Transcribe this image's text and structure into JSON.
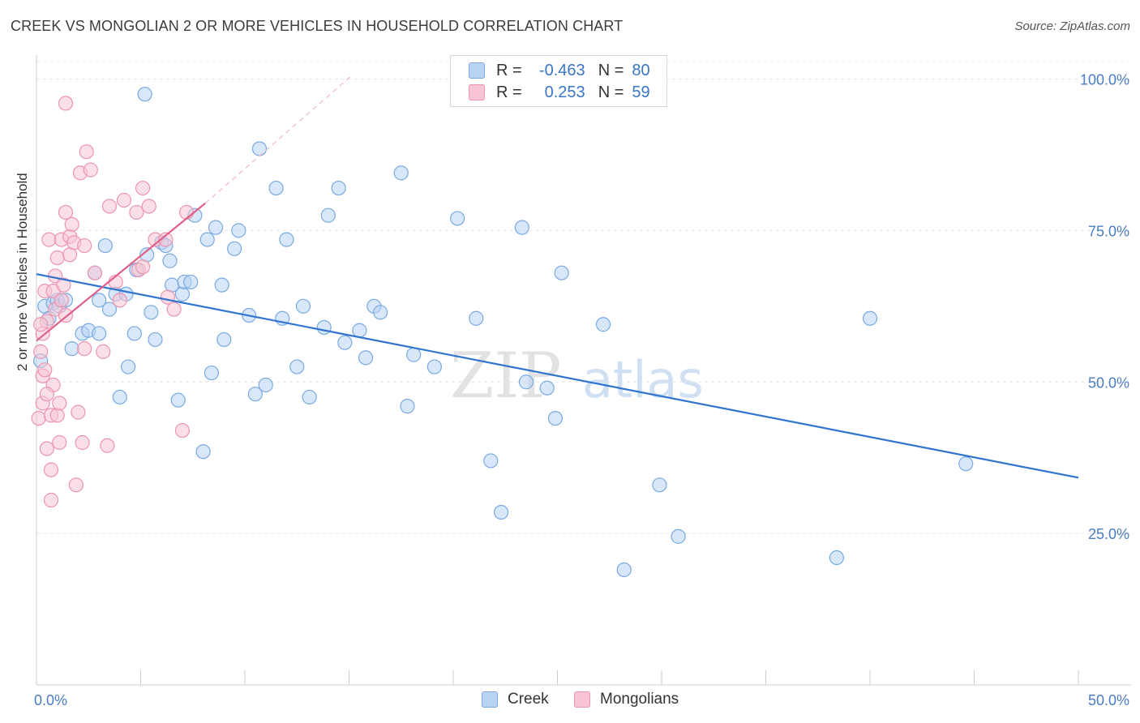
{
  "title": "CREEK VS MONGOLIAN 2 OR MORE VEHICLES IN HOUSEHOLD CORRELATION CHART",
  "source": "Source: ZipAtlas.com",
  "watermark": {
    "zip": "ZIP",
    "atlas": "atlas"
  },
  "colors": {
    "creek_fill": "#b8d3f4",
    "creek_stroke": "#7aaae0",
    "creek_line": "#2f74cf",
    "mong_fill": "#f7c4d4",
    "mong_stroke": "#ec94b0",
    "mong_line": "#e0608a",
    "tick_label": "#4a7cc4"
  },
  "legend": {
    "r_label": "R =",
    "n_label": "N =",
    "creek": {
      "r": "-0.463",
      "n": "80"
    },
    "mongolians": {
      "r": "0.253",
      "n": "59"
    }
  },
  "bottom_legend": {
    "creek": "Creek",
    "mongolians": "Mongolians"
  },
  "chart_data": {
    "type": "scatter",
    "title": "CREEK VS MONGOLIAN 2 OR MORE VEHICLES IN HOUSEHOLD CORRELATION CHART",
    "xlabel": "",
    "ylabel": "2 or more Vehicles in Household",
    "xlim": [
      0,
      50
    ],
    "ylim": [
      0,
      105
    ],
    "x_tick_labels": [
      "0.0%",
      "50.0%"
    ],
    "y_ticks": [
      25,
      50,
      75,
      100
    ],
    "y_tick_labels": [
      "25.0%",
      "50.0%",
      "75.0%",
      "100.0%"
    ],
    "grid": true,
    "series": [
      {
        "name": "Creek",
        "points": [
          [
            0.2,
            53.5
          ],
          [
            0.4,
            62.5
          ],
          [
            0.6,
            60.5
          ],
          [
            0.8,
            63
          ],
          [
            1.0,
            63.5
          ],
          [
            1.1,
            62.5
          ],
          [
            1.4,
            63.5
          ],
          [
            1.7,
            55.5
          ],
          [
            2.2,
            58
          ],
          [
            2.5,
            58.5
          ],
          [
            2.8,
            68
          ],
          [
            3.0,
            63.5
          ],
          [
            3.3,
            72.5
          ],
          [
            3.5,
            62
          ],
          [
            3.8,
            64.5
          ],
          [
            4.0,
            47.5
          ],
          [
            4.3,
            64.5
          ],
          [
            4.4,
            52.5
          ],
          [
            4.7,
            58
          ],
          [
            4.8,
            68.5
          ],
          [
            5.2,
            97.5
          ],
          [
            5.3,
            71
          ],
          [
            5.5,
            61.5
          ],
          [
            5.7,
            57
          ],
          [
            6.0,
            73
          ],
          [
            6.2,
            72.5
          ],
          [
            6.4,
            70
          ],
          [
            6.5,
            66
          ],
          [
            6.8,
            47
          ],
          [
            7.0,
            64.5
          ],
          [
            7.1,
            66.5
          ],
          [
            7.4,
            66.5
          ],
          [
            7.6,
            77.5
          ],
          [
            8.0,
            38.5
          ],
          [
            8.2,
            73.5
          ],
          [
            8.4,
            51.5
          ],
          [
            8.6,
            75.5
          ],
          [
            8.9,
            66
          ],
          [
            9.0,
            57
          ],
          [
            9.5,
            72
          ],
          [
            9.7,
            75
          ],
          [
            10.2,
            61
          ],
          [
            10.5,
            48
          ],
          [
            10.7,
            88.5
          ],
          [
            11.0,
            49.5
          ],
          [
            11.5,
            82
          ],
          [
            11.8,
            60.5
          ],
          [
            12.5,
            52.5
          ],
          [
            12.8,
            62.5
          ],
          [
            13.1,
            47.5
          ],
          [
            13.8,
            59
          ],
          [
            14.0,
            77.5
          ],
          [
            14.5,
            82
          ],
          [
            14.8,
            56.5
          ],
          [
            15.5,
            58.5
          ],
          [
            15.8,
            54
          ],
          [
            16.2,
            62.5
          ],
          [
            16.5,
            61.5
          ],
          [
            17.5,
            84.5
          ],
          [
            17.8,
            46
          ],
          [
            18.1,
            54.5
          ],
          [
            19.1,
            52.5
          ],
          [
            20.2,
            77
          ],
          [
            21.1,
            60.5
          ],
          [
            21.8,
            37
          ],
          [
            22.3,
            28.5
          ],
          [
            23.3,
            75.5
          ],
          [
            23.5,
            50
          ],
          [
            24.5,
            49
          ],
          [
            24.9,
            44
          ],
          [
            25.2,
            68
          ],
          [
            27.2,
            59.5
          ],
          [
            28.2,
            19
          ],
          [
            29.9,
            33
          ],
          [
            30.8,
            24.5
          ],
          [
            38.4,
            21
          ],
          [
            40.0,
            60.5
          ],
          [
            44.6,
            36.5
          ],
          [
            3.0,
            58
          ],
          [
            12.0,
            73.5
          ]
        ]
      },
      {
        "name": "Mongolians",
        "points": [
          [
            0.1,
            44
          ],
          [
            0.2,
            55
          ],
          [
            0.3,
            51
          ],
          [
            0.3,
            46.5
          ],
          [
            0.3,
            58
          ],
          [
            0.4,
            52
          ],
          [
            0.4,
            65
          ],
          [
            0.5,
            39
          ],
          [
            0.5,
            60
          ],
          [
            0.6,
            73.5
          ],
          [
            0.7,
            44.5
          ],
          [
            0.7,
            35.5
          ],
          [
            0.7,
            30.5
          ],
          [
            0.8,
            49.5
          ],
          [
            0.8,
            65
          ],
          [
            0.9,
            62
          ],
          [
            0.9,
            67.5
          ],
          [
            1.0,
            44.5
          ],
          [
            1.0,
            70.5
          ],
          [
            1.1,
            40
          ],
          [
            1.1,
            46.5
          ],
          [
            1.2,
            63.5
          ],
          [
            1.2,
            73.5
          ],
          [
            1.3,
            66
          ],
          [
            1.4,
            96
          ],
          [
            1.4,
            61
          ],
          [
            1.4,
            78
          ],
          [
            1.6,
            74
          ],
          [
            1.6,
            71
          ],
          [
            1.7,
            76
          ],
          [
            1.8,
            73
          ],
          [
            1.9,
            33
          ],
          [
            2.0,
            45
          ],
          [
            2.1,
            84.5
          ],
          [
            2.2,
            40
          ],
          [
            2.3,
            55.5
          ],
          [
            2.3,
            72.5
          ],
          [
            2.4,
            88
          ],
          [
            2.6,
            85
          ],
          [
            2.8,
            68
          ],
          [
            3.2,
            55
          ],
          [
            3.4,
            39.5
          ],
          [
            3.5,
            79
          ],
          [
            3.8,
            66.5
          ],
          [
            4.0,
            63.5
          ],
          [
            4.2,
            80
          ],
          [
            4.8,
            78
          ],
          [
            4.9,
            68.5
          ],
          [
            5.1,
            82
          ],
          [
            5.1,
            69
          ],
          [
            5.4,
            79
          ],
          [
            5.7,
            73.5
          ],
          [
            6.2,
            73.5
          ],
          [
            6.3,
            64
          ],
          [
            6.6,
            62
          ],
          [
            7.0,
            42
          ],
          [
            7.2,
            78
          ],
          [
            0.5,
            48
          ],
          [
            0.2,
            59.5
          ]
        ]
      }
    ],
    "trend_lines": [
      {
        "series": "Creek",
        "x": [
          0,
          50
        ],
        "y": [
          67.8,
          34.2
        ]
      },
      {
        "series": "Mongolians",
        "x": [
          0,
          8.1
        ],
        "y": [
          56.8,
          79.5
        ]
      },
      {
        "series": "Mongolians (extrapolated)",
        "x": [
          8.1,
          15.2
        ],
        "y": [
          79.5,
          100.8
        ]
      }
    ]
  }
}
